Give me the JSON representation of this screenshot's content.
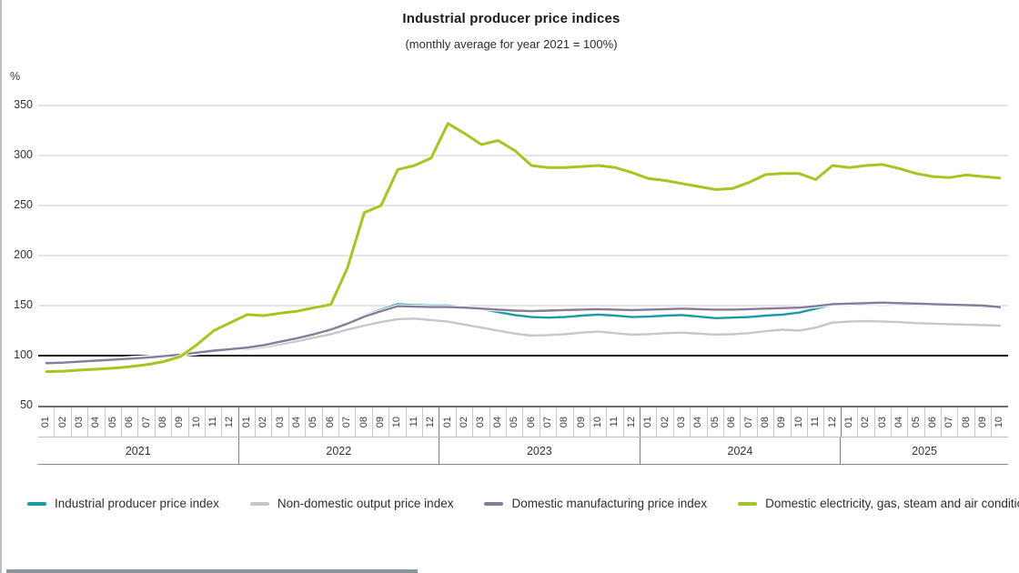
{
  "chart_data": {
    "type": "line",
    "title": "Industrial producer price indices",
    "subtitle": "(monthly average for year 2021 = 100%)",
    "y_unit": "%",
    "y_ticks": [
      50,
      100,
      150,
      200,
      250,
      300,
      350
    ],
    "ylim": [
      50,
      370
    ],
    "baseline": 100,
    "grid": "horizontal",
    "legend_position": "bottom",
    "years": [
      {
        "label": "2021",
        "months": [
          "01",
          "02",
          "03",
          "04",
          "05",
          "06",
          "07",
          "08",
          "09",
          "10",
          "11",
          "12"
        ]
      },
      {
        "label": "2022",
        "months": [
          "01",
          "02",
          "03",
          "04",
          "05",
          "06",
          "07",
          "08",
          "09",
          "10",
          "11",
          "12"
        ]
      },
      {
        "label": "2023",
        "months": [
          "01",
          "02",
          "03",
          "04",
          "05",
          "06",
          "07",
          "08",
          "09",
          "10",
          "11",
          "12"
        ]
      },
      {
        "label": "2024",
        "months": [
          "01",
          "02",
          "03",
          "04",
          "05",
          "06",
          "07",
          "08",
          "09",
          "10",
          "11",
          "12"
        ]
      },
      {
        "label": "2025",
        "months": [
          "01",
          "02",
          "03",
          "04",
          "05",
          "06",
          "07",
          "08",
          "09",
          "10"
        ]
      }
    ],
    "series": [
      {
        "name": "Industrial producer price index",
        "color": "#1b9aa8",
        "values": [
          93,
          93.5,
          94.5,
          95.5,
          96.5,
          97.5,
          98.5,
          100,
          101.5,
          103.5,
          105.5,
          107,
          108.5,
          111,
          114.5,
          118,
          122,
          127,
          133,
          140,
          146,
          151.5,
          150.5,
          150,
          150,
          148.5,
          146.5,
          143.5,
          140.5,
          138.5,
          138,
          138.5,
          140,
          141,
          140,
          138.5,
          139,
          140,
          140.5,
          139,
          137.5,
          138,
          138.5,
          140,
          141,
          143,
          147,
          151,
          151,
          151.5,
          152,
          151.5,
          151,
          151,
          150.5,
          150,
          149,
          148
        ]
      },
      {
        "name": "Non-domestic output price index",
        "color": "#c7c7c7",
        "values": [
          92.5,
          93,
          93.5,
          94.5,
          95.5,
          96.5,
          97.5,
          99,
          100.5,
          102.5,
          104.5,
          106,
          106.5,
          108.5,
          111.5,
          114.5,
          118,
          121.5,
          126,
          130,
          133.5,
          136.5,
          137,
          135.5,
          134,
          131,
          128,
          125,
          122,
          120,
          120.5,
          121.5,
          123,
          124,
          122.5,
          121,
          121.5,
          122.5,
          123,
          122,
          121,
          121.5,
          122.5,
          124.5,
          126,
          125,
          128,
          133,
          134,
          134.5,
          134,
          133.5,
          132.5,
          132,
          131.5,
          131,
          130.5,
          130
        ]
      },
      {
        "name": "Domestic manufacturing price index",
        "color": "#877b98",
        "values": [
          92.5,
          93,
          94,
          95,
          96,
          97,
          98,
          99.5,
          101,
          103,
          105,
          106.5,
          108,
          110.5,
          114,
          117.5,
          121.5,
          126,
          132,
          139,
          144.5,
          149.5,
          149,
          148.5,
          148.5,
          148,
          147,
          146,
          145,
          144.5,
          145,
          145.5,
          146,
          146.5,
          146,
          145.5,
          146,
          146.5,
          147,
          146.5,
          146,
          146,
          146.5,
          147,
          147.5,
          148,
          149.5,
          151.5,
          152,
          152.5,
          153,
          152.5,
          152,
          151.5,
          151,
          150.5,
          150,
          148.5
        ]
      },
      {
        "name": "Domestic electricity, gas, steam and air conditioning supply price index",
        "color": "#a3c721",
        "values": [
          84,
          84.5,
          85.5,
          86.5,
          87.5,
          89,
          91,
          94,
          99,
          111,
          125,
          133,
          141,
          140,
          142.5,
          144.5,
          148,
          151,
          188,
          243,
          250,
          286,
          290,
          297.5,
          332,
          322,
          311,
          315,
          305,
          290,
          288,
          288,
          289,
          290,
          288,
          283,
          277,
          275,
          272,
          269,
          266,
          267,
          273,
          281,
          282,
          282,
          276,
          290,
          288,
          290,
          291,
          287,
          282,
          279,
          278,
          280.5,
          279,
          277.5
        ]
      }
    ]
  },
  "colors": {
    "gridline": "#c9c9c9",
    "baseline": "#1a1a1a",
    "bottom_bar": "#8e9699"
  }
}
